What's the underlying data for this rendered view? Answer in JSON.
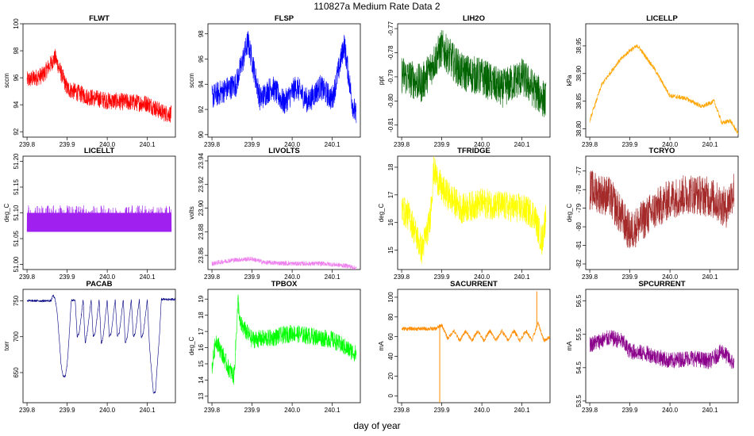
{
  "page": {
    "title": "110827a   Medium Rate Data 2",
    "xlabel": "day of year"
  },
  "chart_data": [
    {
      "type": "line",
      "title": "FLWT",
      "xlabel": "",
      "ylabel": "sccm",
      "color": "#ff0000",
      "xlim": [
        239.79,
        240.17
      ],
      "ylim": [
        91.6,
        100
      ],
      "xticks": [
        "239.8",
        "239.9",
        "240.0",
        "240.1"
      ],
      "yticks": [
        "92",
        "94",
        "96",
        "98",
        "100"
      ],
      "series": [
        {
          "name": "FLWT",
          "x": [
            239.8,
            239.84,
            239.87,
            239.9,
            239.95,
            240.0,
            240.05,
            240.1,
            240.14,
            240.16
          ],
          "values": [
            95.8,
            96.2,
            97.5,
            95.2,
            94.6,
            94.3,
            94.2,
            94.1,
            93.4,
            93.3
          ],
          "noise": 1.3
        }
      ]
    },
    {
      "type": "line",
      "title": "FLSP",
      "xlabel": "",
      "ylabel": "sccm",
      "color": "#0000ff",
      "xlim": [
        239.79,
        240.17
      ],
      "ylim": [
        89.8,
        98.8
      ],
      "xticks": [
        "239.8",
        "239.9",
        "240.0",
        "240.1"
      ],
      "yticks": [
        "90",
        "92",
        "94",
        "96",
        "98"
      ],
      "series": [
        {
          "name": "FLSP",
          "x": [
            239.8,
            239.86,
            239.89,
            239.92,
            239.95,
            239.98,
            240.01,
            240.04,
            240.07,
            240.1,
            240.13,
            240.15,
            240.16
          ],
          "values": [
            93,
            94,
            97.4,
            92.8,
            93.8,
            92.5,
            93.8,
            92.6,
            93.8,
            92.8,
            97.2,
            92.5,
            91.4
          ],
          "noise": 2.0
        }
      ]
    },
    {
      "type": "line",
      "title": "LIH2O",
      "xlabel": "",
      "ylabel": "ppt",
      "color": "#006400",
      "xlim": [
        239.79,
        240.17
      ],
      "ylim": [
        -0.815,
        -0.768
      ],
      "xticks": [
        "239.8",
        "239.9",
        "240.0",
        "240.1"
      ],
      "yticks": [
        "-0.81",
        "-0.80",
        "-0.79",
        "-0.78",
        "-0.77"
      ],
      "series": [
        {
          "name": "LIH2O",
          "x": [
            239.8,
            239.85,
            239.9,
            239.95,
            240.0,
            240.05,
            240.1,
            240.14,
            240.16
          ],
          "values": [
            -0.789,
            -0.793,
            -0.778,
            -0.788,
            -0.79,
            -0.795,
            -0.79,
            -0.797,
            -0.8
          ],
          "noise": 0.016
        }
      ]
    },
    {
      "type": "line",
      "title": "LICELLP",
      "xlabel": "",
      "ylabel": "kPa",
      "color": "#ffa500",
      "xlim": [
        239.79,
        240.17
      ],
      "ylim": [
        38.785,
        38.99
      ],
      "xticks": [
        "239.8",
        "239.9",
        "240.0",
        "240.1"
      ],
      "yticks": [
        "38.80",
        "38.85",
        "38.90",
        "38.95"
      ],
      "series": [
        {
          "name": "LICELLP",
          "x": [
            239.8,
            239.83,
            239.87,
            239.9,
            239.92,
            239.96,
            240.0,
            240.04,
            240.08,
            240.11,
            240.13,
            240.15,
            240.17
          ],
          "values": [
            38.815,
            38.88,
            38.92,
            38.942,
            38.95,
            38.91,
            38.86,
            38.855,
            38.84,
            38.85,
            38.81,
            38.815,
            38.792
          ],
          "noise": 0.008
        }
      ]
    },
    {
      "type": "line",
      "title": "LICELLT",
      "xlabel": "",
      "ylabel": "deg_C",
      "color": "#a020f0",
      "xlim": [
        239.79,
        240.17
      ],
      "ylim": [
        50.99,
        51.21
      ],
      "xticks": [
        "239.8",
        "239.9",
        "240.0",
        "240.1"
      ],
      "yticks": [
        "51.00",
        "51.05",
        "51.10",
        "51.15",
        "51.20"
      ],
      "series": [
        {
          "name": "LICELLT",
          "x": [
            239.8,
            240.16
          ],
          "values": [
            51.08,
            51.08
          ],
          "band": [
            51.063,
            51.1
          ],
          "noise": 0.015
        }
      ]
    },
    {
      "type": "line",
      "title": "LIVOLTS",
      "xlabel": "",
      "ylabel": "volts",
      "color": "#ee82ee",
      "xlim": [
        239.79,
        240.17
      ],
      "ylim": [
        23.848,
        23.944
      ],
      "xticks": [
        "239.8",
        "239.9",
        "240.0",
        "240.1"
      ],
      "yticks": [
        "23.86",
        "23.88",
        "23.90",
        "23.92",
        "23.94"
      ],
      "series": [
        {
          "name": "LIVOLTS",
          "x": [
            239.8,
            239.85,
            239.9,
            239.93,
            240.0,
            240.08,
            240.14,
            240.16
          ],
          "values": [
            23.853,
            23.856,
            23.857,
            23.854,
            23.853,
            23.853,
            23.851,
            23.849
          ],
          "noise": 0.004
        }
      ]
    },
    {
      "type": "line",
      "title": "TFRIDGE",
      "xlabel": "",
      "ylabel": "deg_C",
      "color": "#ffff00",
      "xlim": [
        239.79,
        240.17
      ],
      "ylim": [
        14.3,
        18.4
      ],
      "xticks": [
        "239.8",
        "239.9",
        "240.0",
        "240.1"
      ],
      "yticks": [
        "15",
        "16",
        "17",
        "18"
      ],
      "series": [
        {
          "name": "TFRIDGE",
          "x": [
            239.8,
            239.82,
            239.85,
            239.87,
            239.88,
            239.9,
            239.95,
            240.0,
            240.05,
            240.1,
            240.13,
            240.15,
            240.16
          ],
          "values": [
            16.5,
            16.2,
            15,
            16,
            17.9,
            17.2,
            16.5,
            16.7,
            16.6,
            16.5,
            16.3,
            15.3,
            16.3
          ],
          "noise": 1.1
        }
      ]
    },
    {
      "type": "line",
      "title": "TCRYO",
      "xlabel": "",
      "ylabel": "deg_C",
      "color": "#a52a2a",
      "xlim": [
        239.79,
        240.17
      ],
      "ylim": [
        -82.3,
        -76.2
      ],
      "xticks": [
        "239.8",
        "239.9",
        "240.0",
        "240.1"
      ],
      "yticks": [
        "-82",
        "-81",
        "-80",
        "-79",
        "-78",
        "-77"
      ],
      "series": [
        {
          "name": "TCRYO",
          "x": [
            239.8,
            239.85,
            239.88,
            239.9,
            239.95,
            240.0,
            240.05,
            240.1,
            240.14,
            240.16
          ],
          "values": [
            -78,
            -78.4,
            -79.5,
            -80.3,
            -79.3,
            -78.5,
            -78.2,
            -78.4,
            -79,
            -78
          ],
          "noise": 2.2
        }
      ]
    },
    {
      "type": "line",
      "title": "PACAB",
      "xlabel": "",
      "ylabel": "torr",
      "color": "#000080",
      "xlim": [
        239.79,
        240.17
      ],
      "ylim": [
        608,
        766
      ],
      "xticks": [
        "239.8",
        "239.9",
        "240.0",
        "240.1"
      ],
      "yticks": [
        "650",
        "700",
        "750"
      ],
      "series": [
        {
          "name": "PACAB",
          "x": [
            239.8,
            239.86,
            239.865,
            239.87,
            239.875,
            239.88,
            239.885,
            239.89,
            239.895,
            239.9,
            239.905,
            239.91,
            239.92,
            239.925,
            239.93,
            239.94,
            239.945,
            239.95,
            239.96,
            239.965,
            239.97,
            239.98,
            239.985,
            239.99,
            240.0,
            240.005,
            240.01,
            240.02,
            240.025,
            240.03,
            240.04,
            240.045,
            240.05,
            240.06,
            240.065,
            240.07,
            240.08,
            240.085,
            240.09,
            240.1,
            240.105,
            240.11,
            240.115,
            240.12,
            240.13,
            240.135,
            240.17
          ],
          "values": [
            750,
            750,
            758,
            752,
            735,
            700,
            660,
            645,
            645,
            660,
            700,
            750,
            752,
            700,
            705,
            752,
            690,
            705,
            752,
            700,
            705,
            752,
            690,
            700,
            752,
            700,
            705,
            752,
            700,
            705,
            752,
            690,
            700,
            752,
            700,
            705,
            752,
            698,
            705,
            752,
            690,
            655,
            622,
            622,
            700,
            752,
            752
          ],
          "noise": 3
        }
      ]
    },
    {
      "type": "line",
      "title": "TPBOX",
      "xlabel": "",
      "ylabel": "deg_C",
      "color": "#00ff00",
      "xlim": [
        239.79,
        240.17
      ],
      "ylim": [
        12.6,
        19.6
      ],
      "xticks": [
        "239.8",
        "239.9",
        "240.0",
        "240.1"
      ],
      "yticks": [
        "13",
        "14",
        "15",
        "16",
        "17",
        "18",
        "19"
      ],
      "series": [
        {
          "name": "TPBOX",
          "x": [
            239.8,
            239.81,
            239.84,
            239.855,
            239.86,
            239.865,
            239.87,
            239.9,
            239.95,
            240.0,
            240.05,
            240.1,
            240.14,
            240.16
          ],
          "values": [
            14.8,
            16.5,
            14.8,
            14.2,
            16.5,
            19,
            17.5,
            16.5,
            16.6,
            16.9,
            16.7,
            16.5,
            15.9,
            15.6
          ],
          "noise": 1.1
        }
      ]
    },
    {
      "type": "line",
      "title": "SACURRENT",
      "xlabel": "",
      "ylabel": "mA",
      "color": "#ff8c00",
      "xlim": [
        239.79,
        240.17
      ],
      "ylim": [
        -7,
        108
      ],
      "xticks": [
        "239.8",
        "239.9",
        "240.0",
        "240.1"
      ],
      "yticks": [
        "0",
        "20",
        "40",
        "60",
        "80",
        "100"
      ],
      "series": [
        {
          "name": "SACURRENT",
          "x": [
            239.8,
            239.885,
            239.9,
            239.915,
            239.93,
            239.945,
            239.96,
            239.975,
            239.99,
            240.005,
            240.02,
            240.035,
            240.05,
            240.065,
            240.08,
            240.095,
            240.11,
            240.125,
            240.14,
            240.155,
            240.17
          ],
          "values": [
            68,
            68,
            72,
            58,
            66,
            56,
            66,
            56,
            66,
            56,
            66,
            56,
            66,
            56,
            66,
            56,
            66,
            56,
            74,
            56,
            60
          ],
          "noise": 4
        },
        {
          "name": "spikes",
          "x": [
            239.895,
            240.137
          ],
          "values": [
            -7,
            106
          ]
        }
      ]
    },
    {
      "type": "line",
      "title": "SPCURRENT",
      "xlabel": "",
      "ylabel": "mA",
      "color": "#8b008b",
      "xlim": [
        239.79,
        240.17
      ],
      "ylim": [
        53.45,
        56.85
      ],
      "xticks": [
        "239.8",
        "239.9",
        "240.0",
        "240.1"
      ],
      "yticks": [
        "53.5",
        "54.5",
        "55.5",
        "56.5"
      ],
      "series": [
        {
          "name": "SPCURRENT",
          "x": [
            239.8,
            239.85,
            239.88,
            239.9,
            239.95,
            240.0,
            240.05,
            240.1,
            240.13,
            240.16
          ],
          "values": [
            55.2,
            55.4,
            55.3,
            55.0,
            54.9,
            54.7,
            54.8,
            54.7,
            55.0,
            54.6
          ],
          "noise": 0.5
        }
      ]
    }
  ]
}
